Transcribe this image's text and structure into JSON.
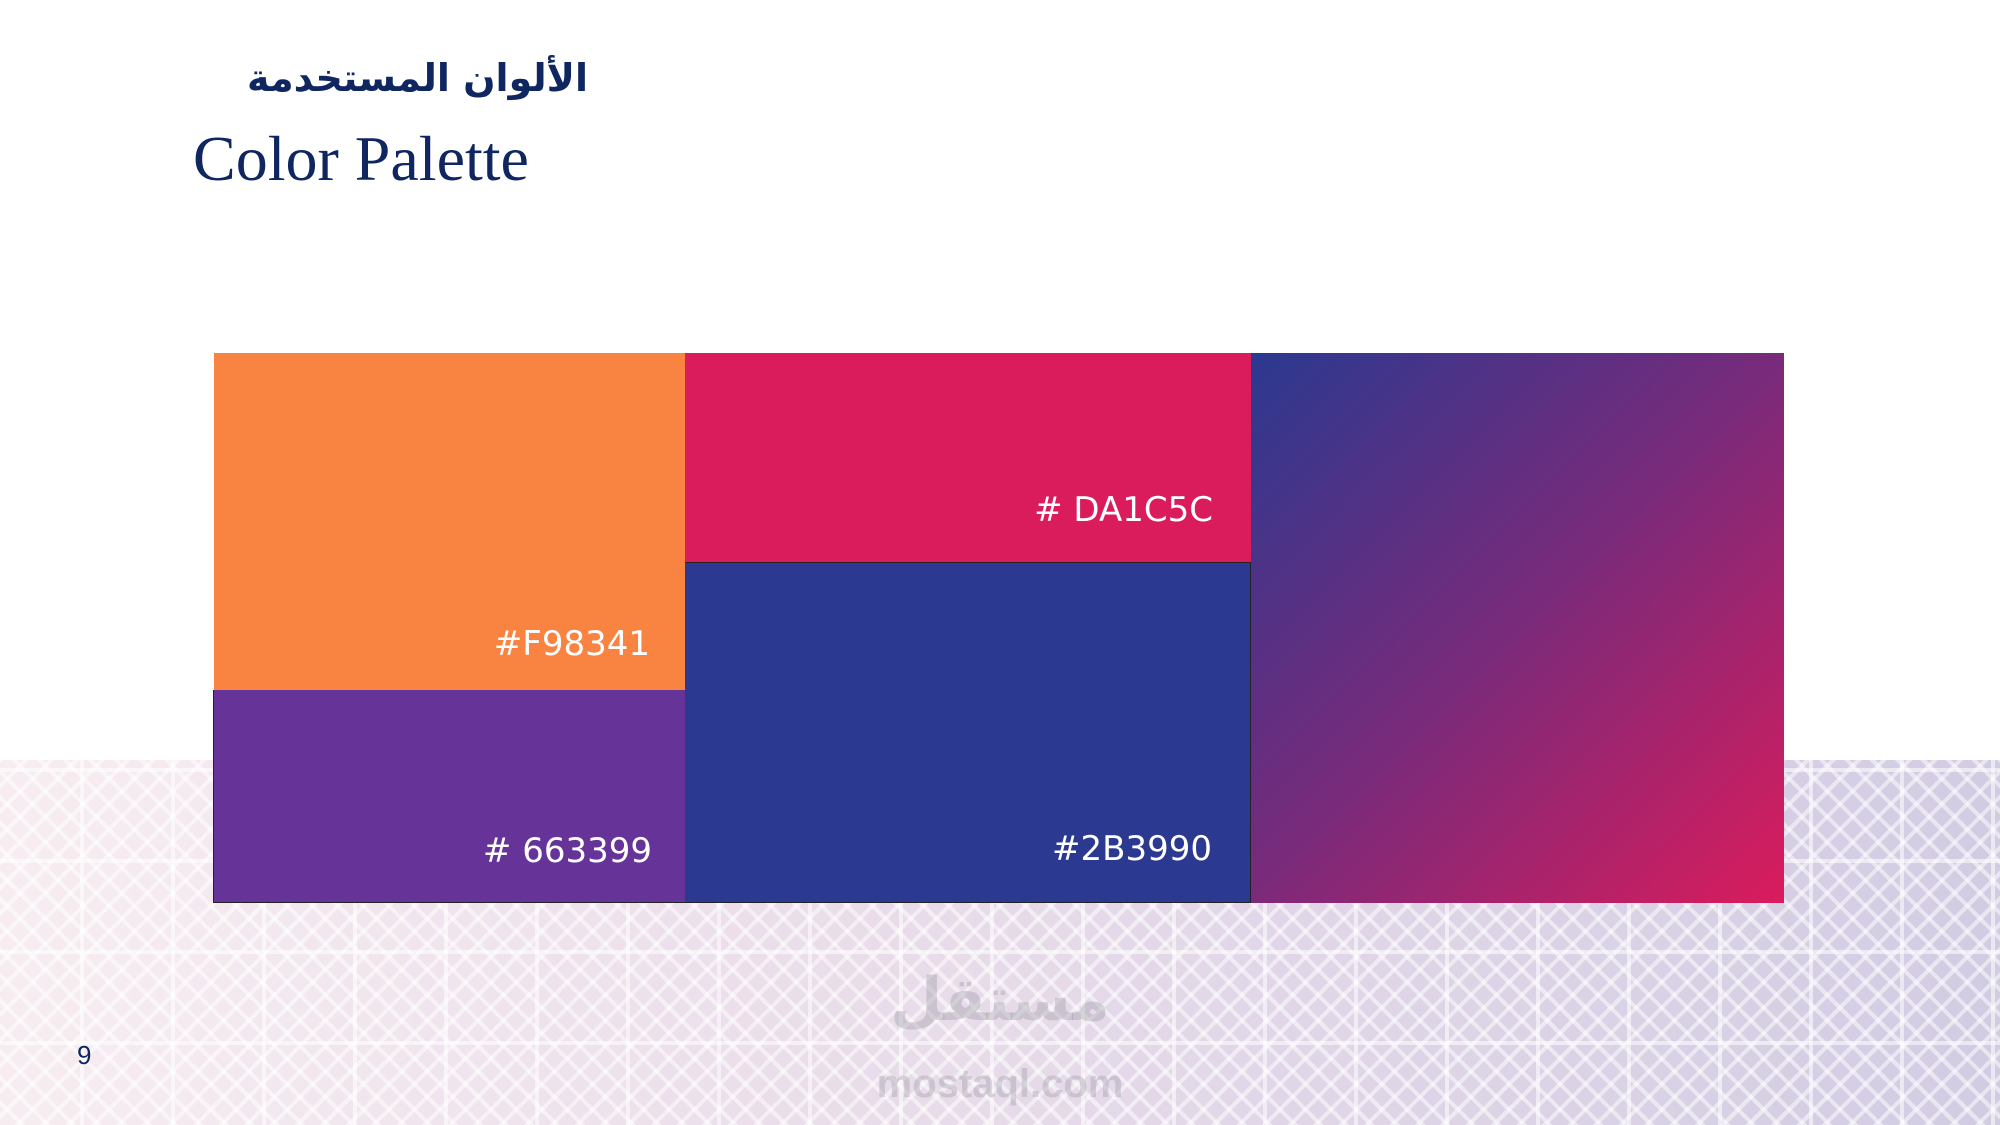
{
  "title": {
    "arabic": "الألوان المستخدمة",
    "english": "Color Palette"
  },
  "swatches": [
    {
      "name": "orange",
      "label": "#F98341",
      "color": "#F98341"
    },
    {
      "name": "purple",
      "label": "# 663399",
      "color": "#663399"
    },
    {
      "name": "red",
      "label": "# DA1C5C",
      "color": "#DA1C5C"
    },
    {
      "name": "blue",
      "label": "#2B3990",
      "color": "#2B3990"
    },
    {
      "name": "gradient",
      "from": "#2B3990",
      "to": "#DA1C5C"
    }
  ],
  "page_number": "9",
  "watermark": {
    "arabic": "مستقل",
    "english": "mostaql.com"
  }
}
